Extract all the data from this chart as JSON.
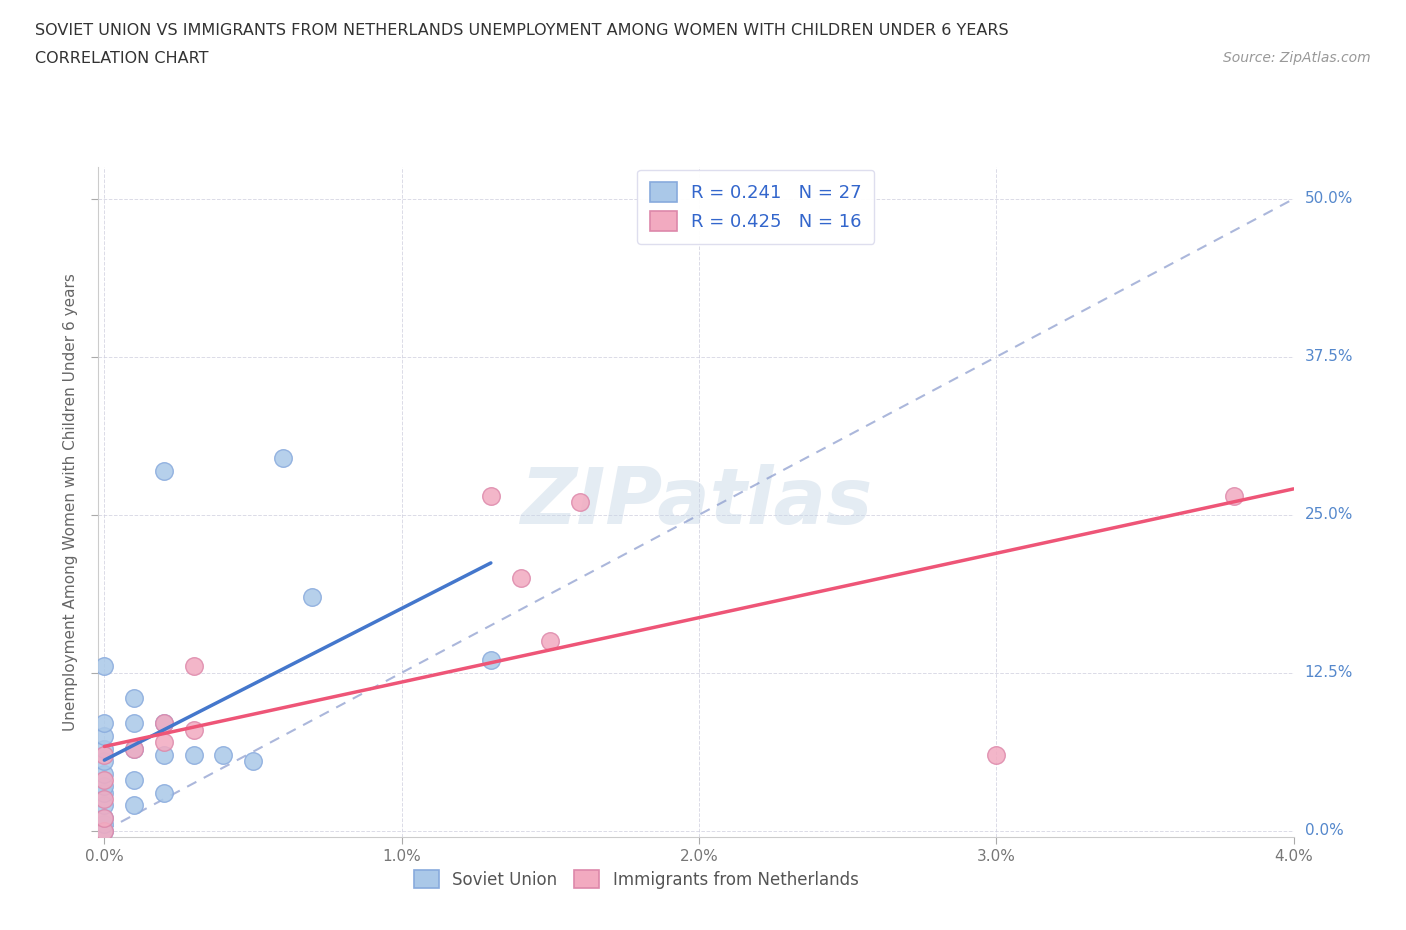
{
  "title_line1": "SOVIET UNION VS IMMIGRANTS FROM NETHERLANDS UNEMPLOYMENT AMONG WOMEN WITH CHILDREN UNDER 6 YEARS",
  "title_line2": "CORRELATION CHART",
  "source": "Source: ZipAtlas.com",
  "ylabel": "Unemployment Among Women with Children Under 6 years",
  "xlim": [
    0.0,
    0.04
  ],
  "ylim": [
    -0.005,
    0.525
  ],
  "xticks": [
    0.0,
    0.01,
    0.02,
    0.03,
    0.04
  ],
  "xtick_labels": [
    "0.0%",
    "1.0%",
    "2.0%",
    "3.0%",
    "4.0%"
  ],
  "yticks": [
    0.0,
    0.125,
    0.25,
    0.375,
    0.5
  ],
  "ytick_labels": [
    "0.0%",
    "12.5%",
    "25.0%",
    "37.5%",
    "50.0%"
  ],
  "soviet_color": "#aac8e8",
  "netherlands_color": "#f2aac0",
  "soviet_line_color": "#4477cc",
  "netherlands_line_color": "#ee5577",
  "dash_line_color": "#8899cc",
  "legend_R1": "0.241",
  "legend_N1": "27",
  "legend_R2": "0.425",
  "legend_N2": "16",
  "soviet_x": [
    0.0,
    0.0,
    0.0,
    0.0,
    0.0,
    0.0,
    0.0,
    0.0,
    0.0,
    0.0,
    0.0,
    0.0,
    0.001,
    0.001,
    0.001,
    0.001,
    0.001,
    0.002,
    0.002,
    0.002,
    0.002,
    0.003,
    0.004,
    0.005,
    0.006,
    0.007,
    0.013
  ],
  "soviet_y": [
    0.0,
    0.005,
    0.01,
    0.02,
    0.03,
    0.035,
    0.045,
    0.055,
    0.065,
    0.075,
    0.085,
    0.13,
    0.02,
    0.04,
    0.065,
    0.085,
    0.105,
    0.03,
    0.06,
    0.085,
    0.285,
    0.06,
    0.06,
    0.055,
    0.295,
    0.185,
    0.135
  ],
  "netherlands_x": [
    0.0,
    0.0,
    0.0,
    0.0,
    0.0,
    0.001,
    0.002,
    0.002,
    0.003,
    0.003,
    0.013,
    0.014,
    0.015,
    0.016,
    0.03,
    0.038
  ],
  "netherlands_y": [
    0.0,
    0.01,
    0.025,
    0.04,
    0.06,
    0.065,
    0.07,
    0.085,
    0.08,
    0.13,
    0.265,
    0.2,
    0.15,
    0.26,
    0.06,
    0.265
  ]
}
